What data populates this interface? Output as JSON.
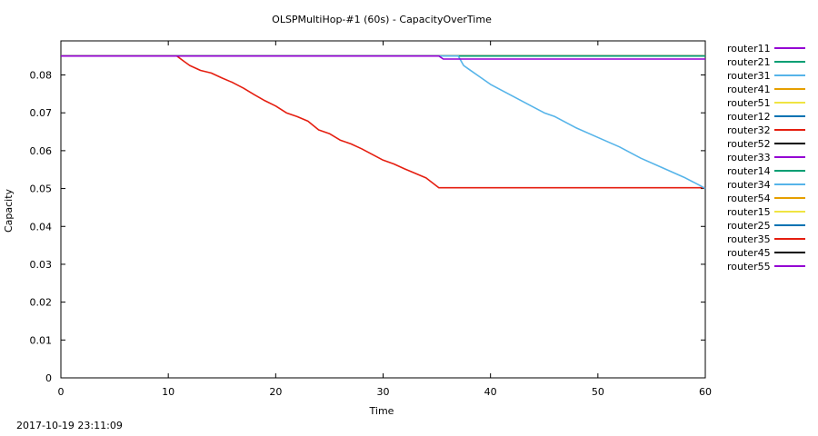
{
  "footer": {
    "timestamp": "2017-10-19 23:11:09"
  },
  "chart_data": {
    "type": "line",
    "title": "OLSPMultiHop-#1 (60s) - CapacityOverTime",
    "xlabel": "Time",
    "ylabel": "Capacity",
    "xlim": [
      0,
      60
    ],
    "ylim": [
      0,
      0.089
    ],
    "xticks": [
      0,
      10,
      20,
      30,
      40,
      50,
      60
    ],
    "yticks": [
      0,
      0.01,
      0.02,
      0.03,
      0.04,
      0.05,
      0.06,
      0.07,
      0.08
    ],
    "grid": false,
    "legend_position": "outside-right",
    "series": [
      {
        "name": "router11",
        "color": "#9400d3",
        "x": [
          0,
          35.2,
          35.6,
          60
        ],
        "y": [
          0.085,
          0.085,
          0.0842,
          0.0842
        ]
      },
      {
        "name": "router21",
        "color": "#009e73",
        "x": [
          0,
          60
        ],
        "y": [
          0.085,
          0.085
        ]
      },
      {
        "name": "router31",
        "color": "#56b4e9",
        "x": [
          0,
          37,
          37.5,
          38,
          39,
          40,
          42,
          44,
          45,
          46,
          48,
          50,
          52,
          54,
          56,
          58,
          59.5,
          60
        ],
        "y": [
          0.085,
          0.085,
          0.0825,
          0.0815,
          0.0795,
          0.0775,
          0.0745,
          0.0715,
          0.07,
          0.069,
          0.066,
          0.0635,
          0.061,
          0.058,
          0.0555,
          0.053,
          0.0508,
          0.05
        ]
      },
      {
        "name": "router41",
        "color": "#e69f00",
        "x": [
          0,
          60
        ],
        "y": [
          0.085,
          0.085
        ]
      },
      {
        "name": "router51",
        "color": "#f0e442",
        "x": [
          0,
          60
        ],
        "y": [
          0.085,
          0.085
        ]
      },
      {
        "name": "router12",
        "color": "#0072b2",
        "x": [
          0,
          60
        ],
        "y": [
          0.085,
          0.085
        ]
      },
      {
        "name": "router32",
        "color": "#e51e10",
        "x": [
          0,
          10.8,
          11.5,
          12,
          13,
          14,
          15,
          16,
          17,
          18,
          19,
          20,
          21,
          22,
          23,
          24,
          25,
          26,
          27,
          28,
          29,
          30,
          31,
          32,
          33,
          34,
          35.2,
          60
        ],
        "y": [
          0.085,
          0.085,
          0.0835,
          0.0825,
          0.0812,
          0.0805,
          0.0792,
          0.078,
          0.0765,
          0.0748,
          0.0732,
          0.0718,
          0.07,
          0.069,
          0.0678,
          0.0655,
          0.0645,
          0.0628,
          0.0618,
          0.0605,
          0.059,
          0.0575,
          0.0565,
          0.0552,
          0.054,
          0.0528,
          0.0502,
          0.0502
        ]
      },
      {
        "name": "router52",
        "color": "#000000",
        "x": [
          0,
          60
        ],
        "y": [
          0.085,
          0.085
        ]
      },
      {
        "name": "router33",
        "color": "#9400d3",
        "x": [
          0,
          60
        ],
        "y": [
          0.085,
          0.085
        ]
      },
      {
        "name": "router14",
        "color": "#009e73",
        "x": [
          0,
          60
        ],
        "y": [
          0.085,
          0.085
        ]
      },
      {
        "name": "router34",
        "color": "#56b4e9",
        "x": [
          0,
          60
        ],
        "y": [
          0.085,
          0.085
        ]
      },
      {
        "name": "router54",
        "color": "#e69f00",
        "x": [
          0,
          60
        ],
        "y": [
          0.085,
          0.085
        ]
      },
      {
        "name": "router15",
        "color": "#f0e442",
        "x": [
          0,
          60
        ],
        "y": [
          0.085,
          0.085
        ]
      },
      {
        "name": "router25",
        "color": "#0072b2",
        "x": [
          0,
          60
        ],
        "y": [
          0.085,
          0.085
        ]
      },
      {
        "name": "router35",
        "color": "#e51e10",
        "x": [
          0,
          60
        ],
        "y": [
          0.085,
          0.085
        ]
      },
      {
        "name": "router45",
        "color": "#000000",
        "x": [
          0,
          60
        ],
        "y": [
          0.085,
          0.085
        ]
      },
      {
        "name": "router55",
        "color": "#9400d3",
        "x": [
          0,
          60
        ],
        "y": [
          0.085,
          0.085
        ]
      }
    ]
  }
}
